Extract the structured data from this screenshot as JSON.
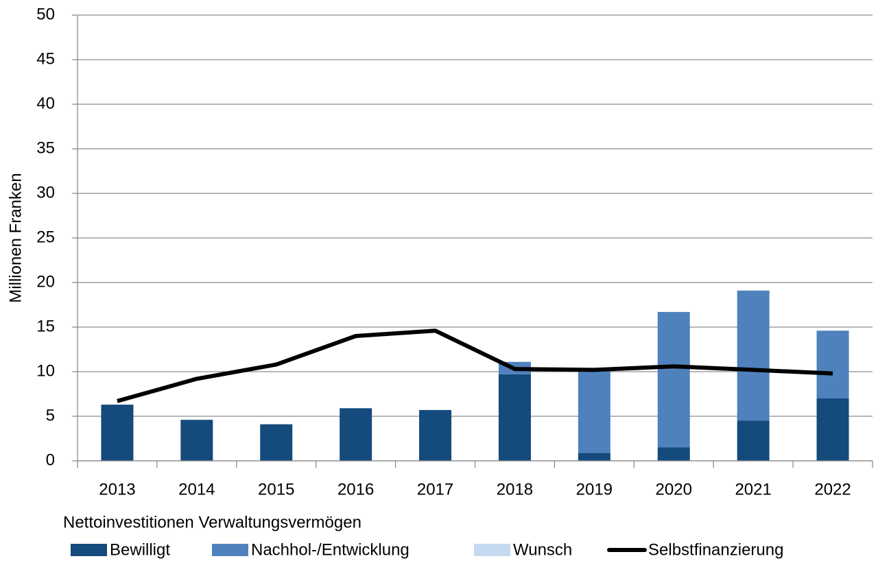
{
  "chart_data": {
    "type": "bar_line",
    "y_label": "Millionen Franken",
    "legend_title": "Nettoinvestitionen Verwaltungsvermögen",
    "categories": [
      "2013",
      "2014",
      "2015",
      "2016",
      "2017",
      "2018",
      "2019",
      "2020",
      "2021",
      "2022"
    ],
    "series": [
      {
        "name": "Bewilligt",
        "type": "bar",
        "color": "#144a7c",
        "values": [
          6.3,
          4.6,
          4.1,
          5.9,
          5.7,
          9.7,
          0.9,
          1.5,
          4.5,
          7.0
        ]
      },
      {
        "name": "Nachhol-/Entwicklung",
        "type": "bar",
        "color": "#4f81bd",
        "values": [
          0,
          0,
          0,
          0,
          0,
          1.4,
          9.3,
          15.2,
          14.6,
          7.6
        ]
      },
      {
        "name": "Wunsch",
        "type": "bar",
        "color": "#c5d9f1",
        "values": [
          0,
          0,
          0,
          0,
          0,
          0,
          0,
          0,
          0,
          0
        ]
      },
      {
        "name": "Selbstfinanzierung",
        "type": "line",
        "color": "#000000",
        "values": [
          6.7,
          9.2,
          10.8,
          14.0,
          14.6,
          10.3,
          10.2,
          10.6,
          10.2,
          9.8
        ]
      }
    ],
    "ylim": [
      0,
      50
    ],
    "yticks": [
      0,
      5,
      10,
      15,
      20,
      25,
      30,
      35,
      40,
      45,
      50
    ],
    "grid": true
  }
}
